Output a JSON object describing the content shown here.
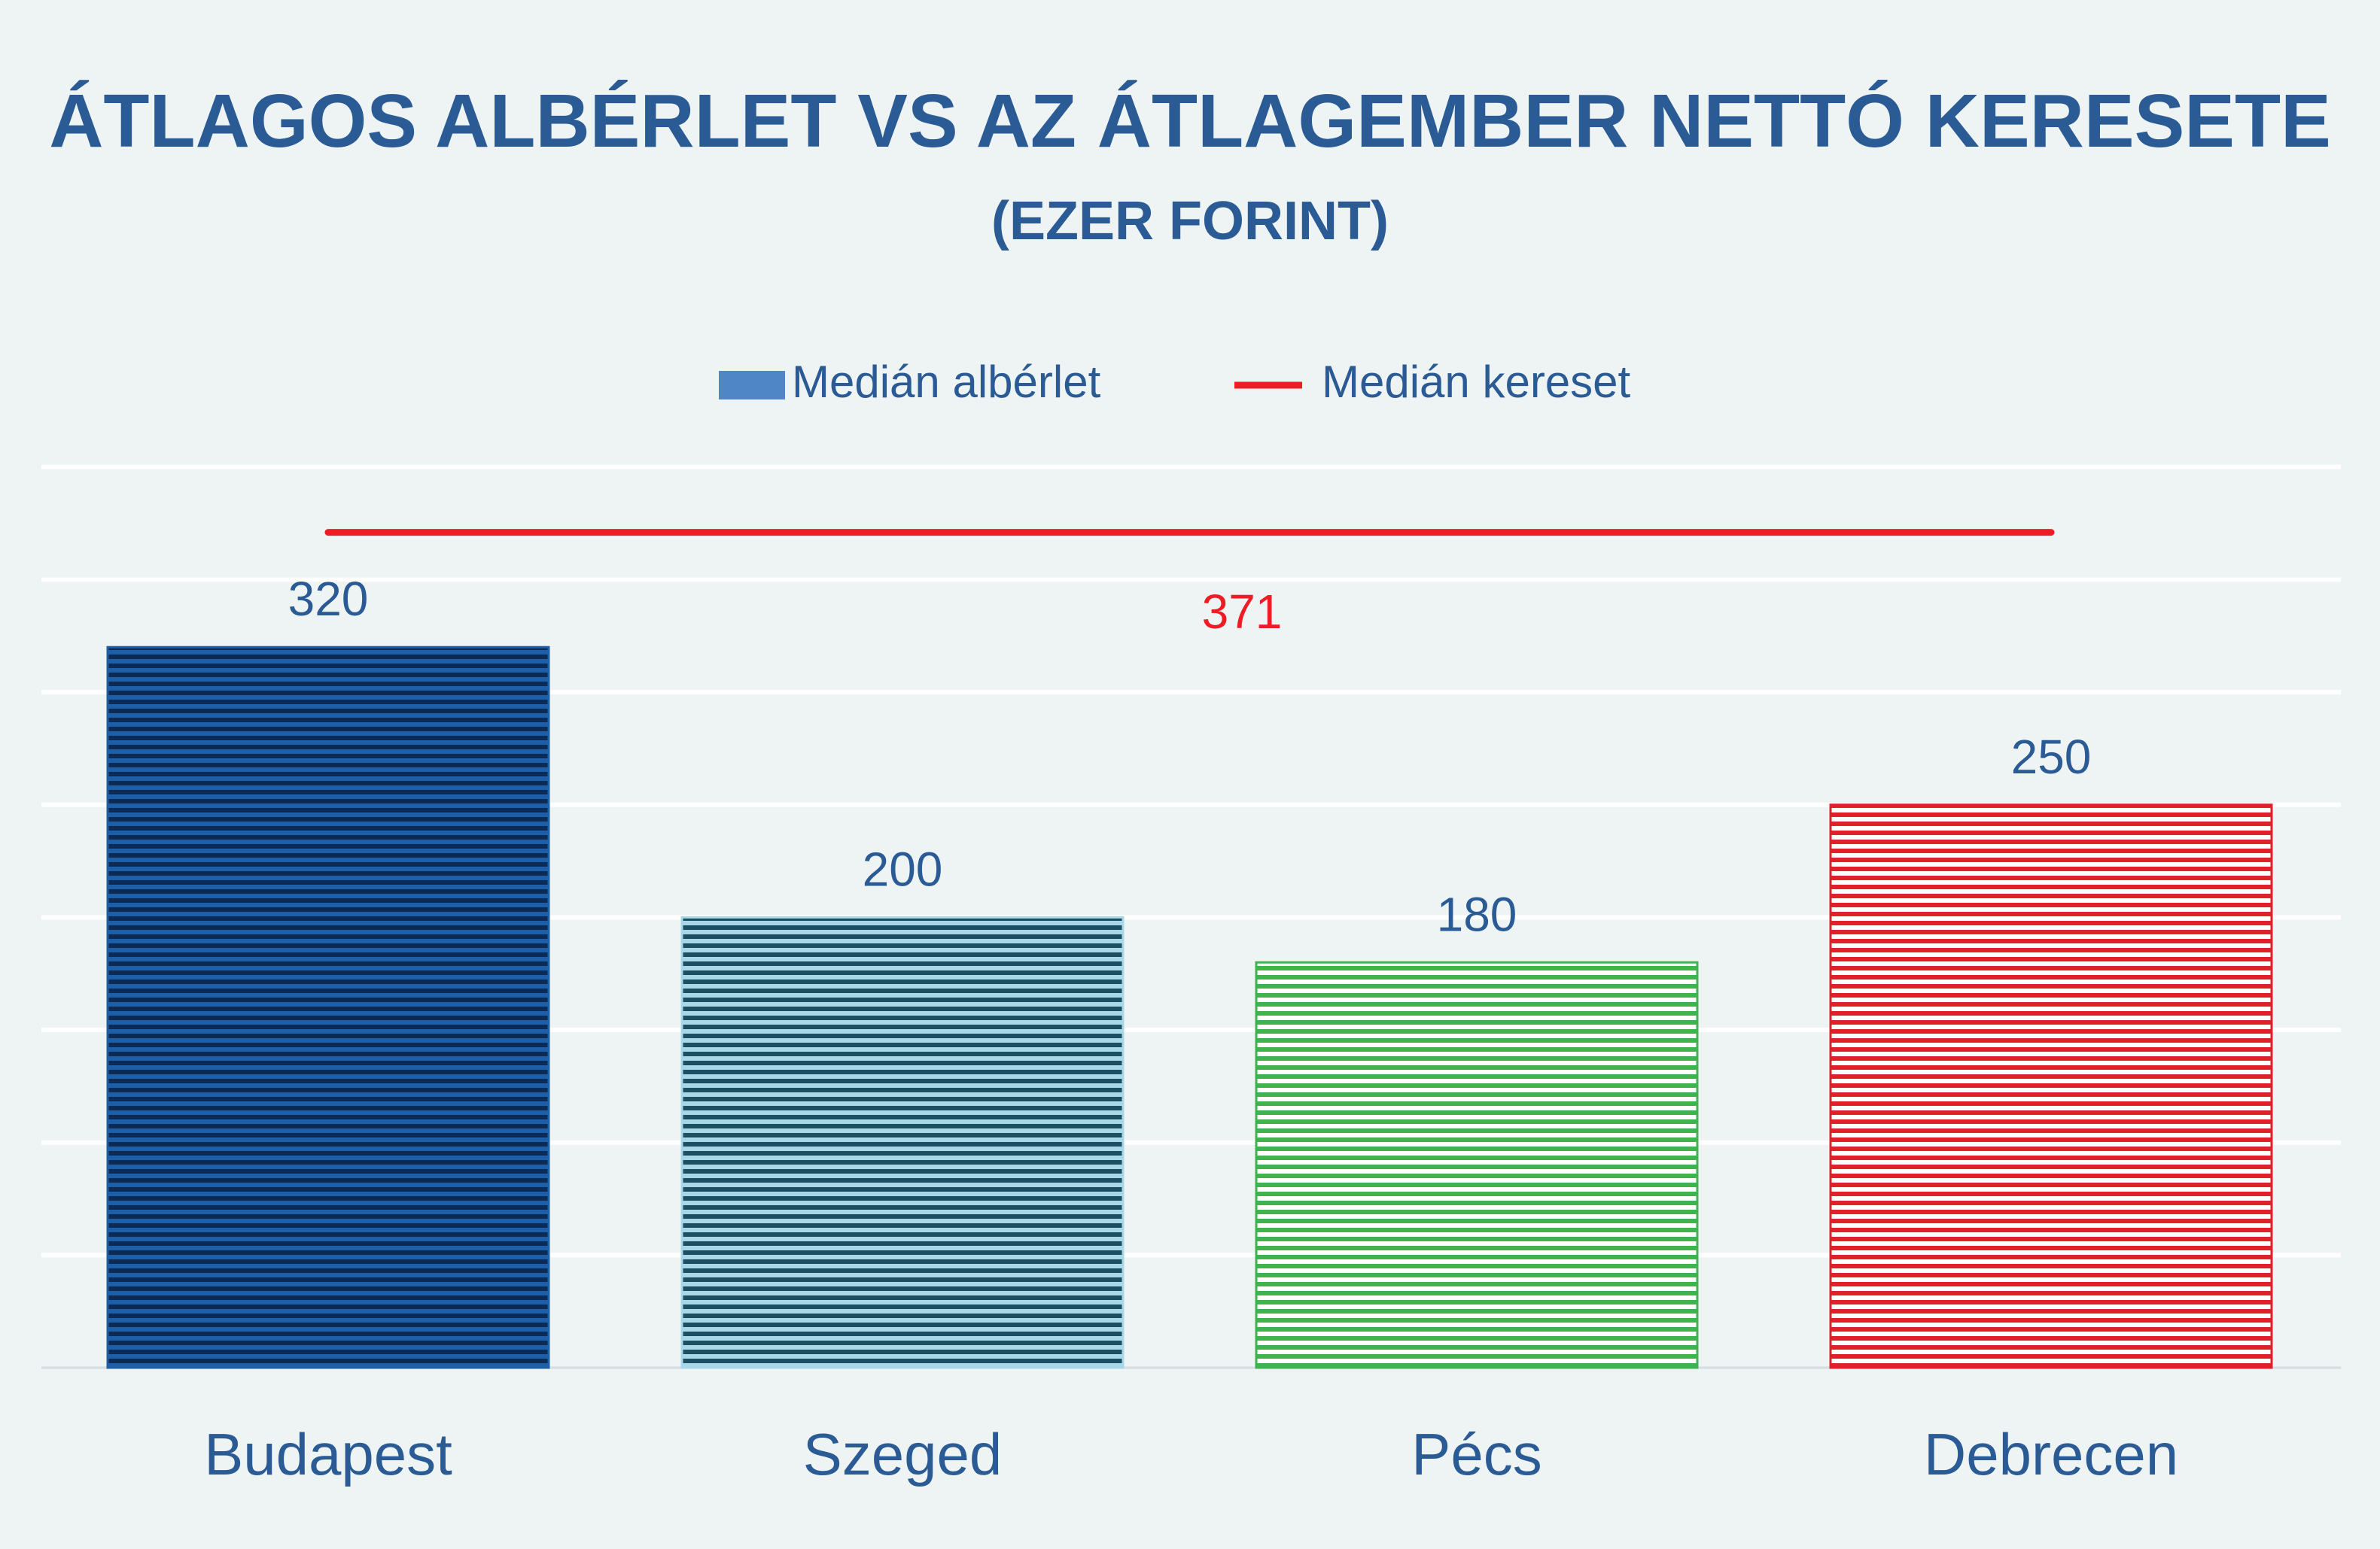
{
  "chart_data": {
    "type": "bar",
    "title": "ÁTLAGOS ALBÉRLET VS AZ ÁTLAGEMBER NETTÓ KERESETE",
    "subtitle": "(EZER FORINT)",
    "categories": [
      "Budapest",
      "Szeged",
      "Pécs",
      "Debrecen"
    ],
    "series": [
      {
        "name": "Medián albérlet",
        "values": [
          320,
          200,
          180,
          250
        ]
      }
    ],
    "reference_line": {
      "name": "Medián kereset",
      "value": 371,
      "label": "371"
    },
    "ylim": [
      0,
      400
    ],
    "grid": true,
    "legend": "top-center",
    "colors": {
      "bars": [
        "#1f5fa8",
        "#a8d8e8",
        "#3fb34f",
        "#e0202a"
      ],
      "stripe": [
        "#0d2b52",
        "#1d4f63",
        "#ffffff",
        "#ffffff"
      ],
      "legend_bar": "#4f86c6",
      "line": "#ee1c25",
      "text": "#2b5b94",
      "line_label": "#ee1c25"
    }
  }
}
